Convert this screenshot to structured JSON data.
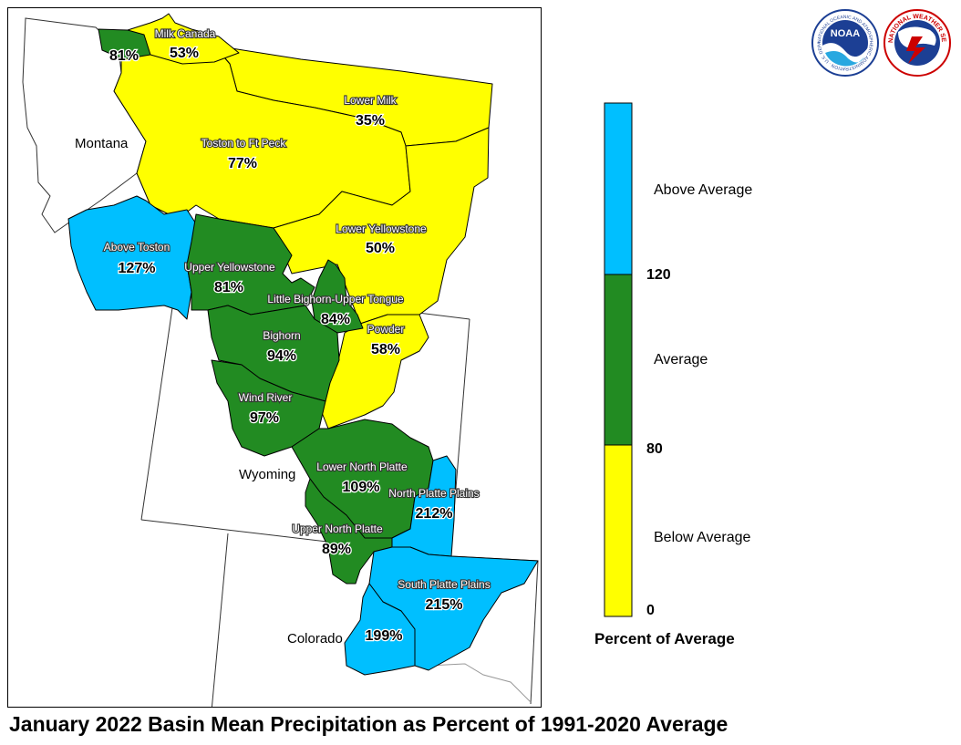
{
  "title": "January 2022 Basin Mean Precipitation as Percent of 1991-2020 Average",
  "colors": {
    "above": "#00bfff",
    "average": "#228b22",
    "below": "#ffff00",
    "state_line": "#333333"
  },
  "states": {
    "montana": "Montana",
    "wyoming": "Wyoming",
    "colorado": "Colorado"
  },
  "basins": {
    "milk_canada": {
      "name": "Milk Canada",
      "value": "53%",
      "category": "below"
    },
    "nw_canada": {
      "name": "",
      "value": "81%",
      "category": "average"
    },
    "lower_milk": {
      "name": "Lower Milk",
      "value": "35%",
      "category": "below"
    },
    "toston_ftpeck": {
      "name": "Toston to Ft Peck",
      "value": "77%",
      "category": "below"
    },
    "above_toston": {
      "name": "Above Toston",
      "value": "127%",
      "category": "above"
    },
    "lower_yellowstone": {
      "name": "Lower Yellowstone",
      "value": "50%",
      "category": "below"
    },
    "upper_yellowstone": {
      "name": "Upper Yellowstone",
      "value": "81%",
      "category": "average"
    },
    "little_bighorn": {
      "name": "Little Bighorn-Upper Tongue",
      "value": "84%",
      "category": "average"
    },
    "powder": {
      "name": "Powder",
      "value": "58%",
      "category": "below"
    },
    "bighorn": {
      "name": "Bighorn",
      "value": "94%",
      "category": "average"
    },
    "wind_river": {
      "name": "Wind River",
      "value": "97%",
      "category": "average"
    },
    "lower_north_platte": {
      "name": "Lower North Platte",
      "value": "109%",
      "category": "average"
    },
    "north_platte_plains": {
      "name": "North Platte Plains",
      "value": "212%",
      "category": "above"
    },
    "upper_north_platte": {
      "name": "Upper North Platte",
      "value": "89%",
      "category": "average"
    },
    "south_platte_plains": {
      "name": "South Platte Plains",
      "value": "215%",
      "category": "above"
    },
    "south_platte_mountains": {
      "name": "",
      "value": "199%",
      "category": "above"
    }
  },
  "legend": {
    "title": "Percent of Average",
    "above_label": "Above Average",
    "average_label": "Average",
    "below_label": "Below Average",
    "ticks": [
      "120",
      "80",
      "0"
    ]
  },
  "logos": {
    "noaa_text": "NOAA",
    "noaa_ring": "NATIONAL OCEANIC AND ATMOSPHERIC ADMINISTRATION · U.S. DEPARTMENT OF COMMERCE",
    "nws_ring": "NATIONAL WEATHER SERVICE"
  }
}
